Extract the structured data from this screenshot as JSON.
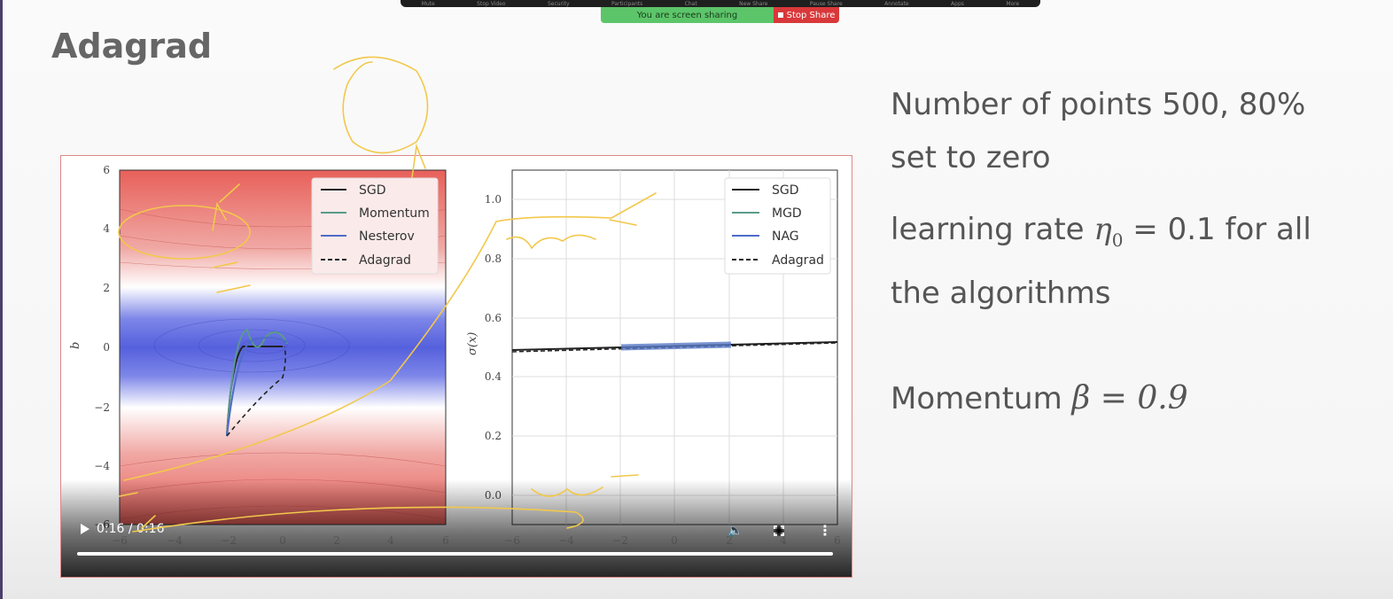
{
  "zoom": {
    "toolbar_items": [
      "Mute",
      "Stop Video",
      "Security",
      "Participants",
      "Chat",
      "New Share",
      "Pause Share",
      "Annotate",
      "Apps",
      "More"
    ],
    "sharing_label": "You are screen sharing",
    "stop_share_label": "Stop Share"
  },
  "slide": {
    "title": "Adagrad",
    "notes": {
      "line1": "Number of points 500, 80%",
      "line2": "set to zero",
      "line3a": "learning rate ",
      "eta": "η",
      "eta_sub": "0",
      "line3b": " = 0.1 for all",
      "line4": "the algorithms",
      "line5a": "Momentum ",
      "beta": "β = 0.9"
    }
  },
  "video": {
    "time": "0:16 / 0:16",
    "progress": 1.0,
    "left_plot": {
      "ylabel": "b",
      "yticks": [
        "6",
        "4",
        "2",
        "0",
        "−2",
        "−4",
        "−6"
      ],
      "xticks": [
        "−6",
        "−4",
        "−2",
        "0",
        "2",
        "4",
        "6"
      ],
      "legend": [
        "SGD",
        "Momentum",
        "Nesterov",
        "Adagrad"
      ]
    },
    "right_plot": {
      "ylabel": "σ(x)",
      "yticks": [
        "1.0",
        "0.8",
        "0.6",
        "0.4",
        "0.2",
        "0.0"
      ],
      "xticks": [
        "−6",
        "−4",
        "−2",
        "0",
        "2",
        "4",
        "6"
      ],
      "legend": [
        "SGD",
        "MGD",
        "NAG",
        "Adagrad"
      ]
    }
  },
  "colors": {
    "accent_red": "#d9383a",
    "share_green": "#5cc56a",
    "ink": "#f2c84b"
  }
}
